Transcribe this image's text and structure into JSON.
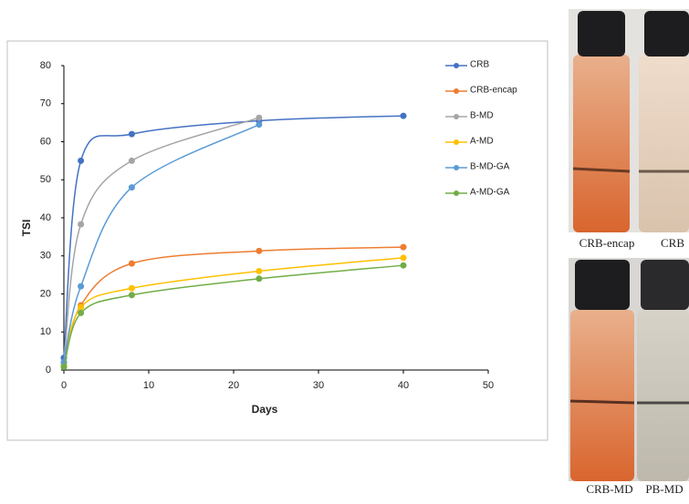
{
  "chart_data": {
    "type": "scatter",
    "xlabel": "Days",
    "ylabel": "TSI",
    "x": [
      0,
      2,
      8,
      23,
      40
    ],
    "xlim": [
      0,
      50
    ],
    "xticks": [
      0,
      10,
      20,
      30,
      40,
      50
    ],
    "ylim": [
      0,
      80
    ],
    "yticks": [
      0,
      10,
      20,
      30,
      40,
      50,
      60,
      70,
      80
    ],
    "grid": false,
    "legend": "right",
    "trendline": true,
    "series": [
      {
        "name": "CRB",
        "color": "#4472c4",
        "values": [
          3.2,
          55,
          62,
          65.5,
          66.8
        ]
      },
      {
        "name": "CRB-encap",
        "color": "#ed7d31",
        "values": [
          1,
          17,
          28,
          31.3,
          32.3
        ]
      },
      {
        "name": "B-MD",
        "color": "#a5a5a5",
        "values": [
          2,
          38.3,
          55,
          66.3,
          null
        ]
      },
      {
        "name": "A-MD",
        "color": "#ffc000",
        "values": [
          1.5,
          16.5,
          21.5,
          26,
          29.5
        ]
      },
      {
        "name": "B-MD-GA",
        "color": "#5b9bd5",
        "values": [
          2,
          22,
          48,
          64.5,
          null
        ]
      },
      {
        "name": "A-MD-GA",
        "color": "#70ad47",
        "values": [
          0.8,
          15,
          19.7,
          24,
          27.5
        ]
      }
    ]
  },
  "photo_labels": {
    "top": [
      "CRB-encap",
      "CRB"
    ],
    "bottom": [
      "CRB-MD",
      "PB-MD"
    ]
  }
}
